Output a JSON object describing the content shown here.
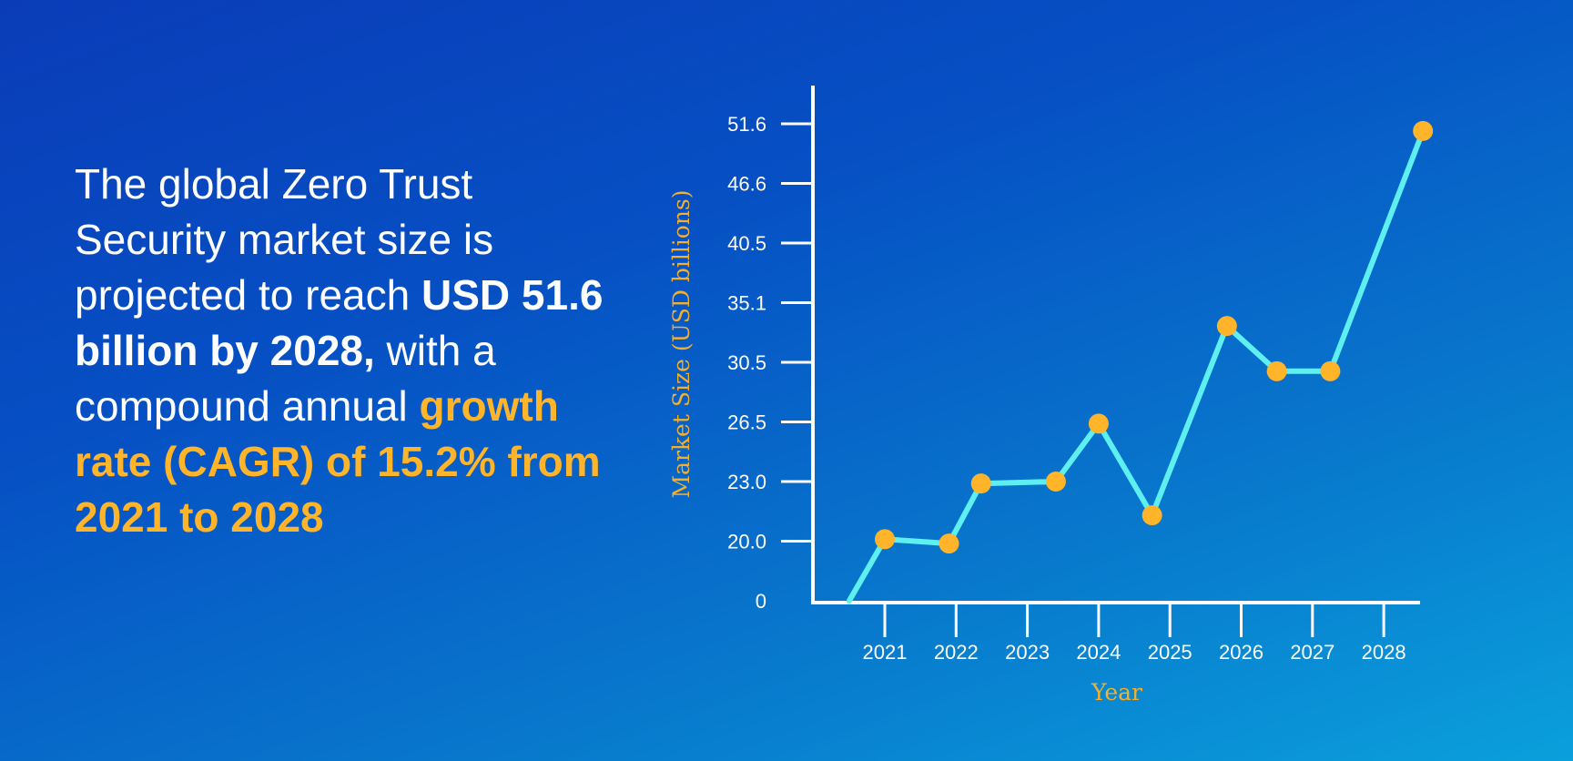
{
  "headline": {
    "part1": "The global Zero Trust Security market size is projected to reach ",
    "part2": "USD 51.6 billion by 2028,",
    "part3": " with a compound annual ",
    "part4": "growth rate (CAGR) of 15.2% from 2021 to 2028"
  },
  "colors": {
    "line": "#5ef0f0",
    "marker": "#ffb42a",
    "axis": "#ffffff",
    "accent_text": "#ffb42a"
  },
  "chart_data": {
    "type": "line",
    "title": "",
    "xlabel": "Year",
    "ylabel": "Market Size (USD billions)",
    "x_ticks": [
      "2021",
      "2022",
      "2023",
      "2024",
      "2025",
      "2026",
      "2027",
      "2028"
    ],
    "y_ticks": [
      "0",
      "20.0",
      "23.0",
      "26.5",
      "30.5",
      "35.1",
      "40.5",
      "46.6",
      "51.6"
    ],
    "grid": false,
    "series": [
      {
        "points": [
          {
            "x": 2020.5,
            "y": 0,
            "marker": false
          },
          {
            "x": 2021,
            "y": 20.1,
            "marker": true
          },
          {
            "x": 2021.9,
            "y": 19.2,
            "marker": true
          },
          {
            "x": 2022.35,
            "y": 22.9,
            "marker": true
          },
          {
            "x": 2023.4,
            "y": 23.0,
            "marker": true
          },
          {
            "x": 2024,
            "y": 26.4,
            "marker": true
          },
          {
            "x": 2024.75,
            "y": 21.3,
            "marker": true
          },
          {
            "x": 2025.8,
            "y": 33.3,
            "marker": true
          },
          {
            "x": 2026.5,
            "y": 29.9,
            "marker": true
          },
          {
            "x": 2027.25,
            "y": 29.9,
            "marker": true
          },
          {
            "x": 2028.55,
            "y": 51.0,
            "marker": true
          }
        ]
      }
    ]
  }
}
